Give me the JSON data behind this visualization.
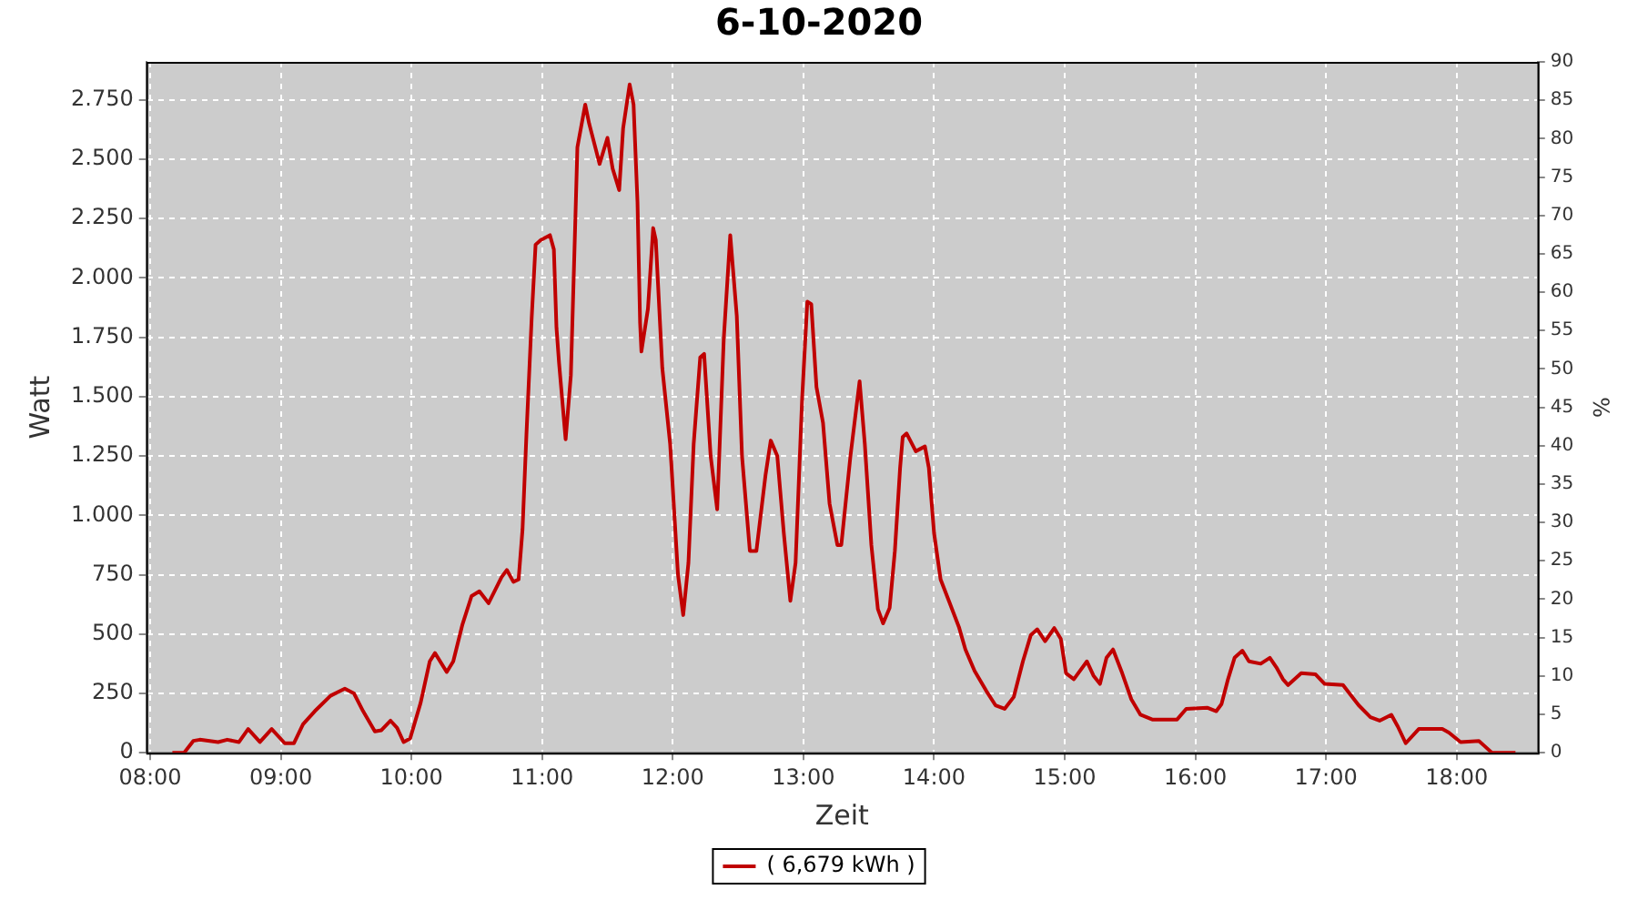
{
  "chart_data": {
    "type": "line",
    "title": "6-10-2020",
    "xlabel": "Zeit",
    "ylabel": "Watt",
    "y2label": "%",
    "x": [
      8.17,
      8.26,
      8.33,
      8.38,
      8.52,
      8.59,
      8.68,
      8.75,
      8.84,
      8.93,
      9.03,
      9.1,
      9.17,
      9.26,
      9.38,
      9.49,
      9.56,
      9.63,
      9.72,
      9.77,
      9.84,
      9.89,
      9.94,
      9.99,
      10.07,
      10.14,
      10.18,
      10.27,
      10.32,
      10.39,
      10.46,
      10.52,
      10.59,
      10.69,
      10.73,
      10.78,
      10.82,
      10.85,
      10.88,
      10.92,
      10.95,
      10.99,
      11.06,
      11.09,
      11.11,
      11.13,
      11.18,
      11.22,
      11.25,
      11.27,
      11.33,
      11.36,
      11.44,
      11.5,
      11.54,
      11.59,
      11.62,
      11.67,
      11.7,
      11.73,
      11.75,
      11.76,
      11.81,
      11.85,
      11.87,
      11.92,
      11.98,
      12.04,
      12.08,
      12.12,
      12.16,
      12.21,
      12.24,
      12.29,
      12.34,
      12.39,
      12.44,
      12.49,
      12.53,
      12.59,
      12.64,
      12.71,
      12.75,
      12.8,
      12.85,
      12.9,
      12.94,
      12.99,
      13.03,
      13.06,
      13.1,
      13.15,
      13.2,
      13.26,
      13.29,
      13.36,
      13.43,
      13.47,
      13.52,
      13.57,
      13.61,
      13.66,
      13.7,
      13.74,
      13.76,
      13.79,
      13.86,
      13.93,
      13.96,
      14.0,
      14.05,
      14.12,
      14.19,
      14.24,
      14.31,
      14.4,
      14.47,
      14.54,
      14.61,
      14.68,
      14.74,
      14.79,
      14.85,
      14.92,
      14.97,
      15.01,
      15.07,
      15.17,
      15.22,
      15.27,
      15.32,
      15.37,
      15.44,
      15.51,
      15.58,
      15.67,
      15.86,
      15.93,
      16.09,
      16.16,
      16.2,
      16.25,
      16.3,
      16.36,
      16.41,
      16.5,
      16.57,
      16.62,
      16.67,
      16.71,
      16.81,
      16.92,
      16.99,
      17.13,
      17.25,
      17.34,
      17.41,
      17.5,
      17.55,
      17.61,
      17.71,
      17.89,
      17.94,
      18.03,
      18.17,
      18.21,
      18.27,
      18.45
    ],
    "series": [
      {
        "name": "( 6,679 kWh )",
        "color": "#c00000",
        "values": [
          0,
          0,
          50,
          55,
          45,
          55,
          45,
          100,
          45,
          100,
          40,
          40,
          120,
          175,
          240,
          270,
          250,
          175,
          90,
          95,
          135,
          105,
          45,
          60,
          210,
          385,
          420,
          340,
          385,
          540,
          660,
          680,
          630,
          740,
          770,
          720,
          730,
          940,
          1340,
          1830,
          2140,
          2160,
          2180,
          2120,
          1790,
          1640,
          1320,
          1590,
          2160,
          2550,
          2730,
          2650,
          2480,
          2590,
          2460,
          2370,
          2630,
          2815,
          2730,
          2320,
          1810,
          1690,
          1870,
          2210,
          2160,
          1620,
          1300,
          750,
          580,
          800,
          1300,
          1665,
          1680,
          1250,
          1025,
          1740,
          2180,
          1840,
          1250,
          850,
          850,
          1170,
          1315,
          1250,
          925,
          640,
          800,
          1490,
          1900,
          1890,
          1540,
          1390,
          1050,
          875,
          875,
          1250,
          1565,
          1300,
          875,
          605,
          545,
          610,
          850,
          1200,
          1330,
          1345,
          1270,
          1290,
          1200,
          925,
          730,
          630,
          530,
          435,
          345,
          260,
          200,
          185,
          235,
          385,
          495,
          520,
          470,
          525,
          480,
          335,
          310,
          385,
          325,
          290,
          400,
          435,
          335,
          225,
          160,
          140,
          140,
          185,
          190,
          175,
          205,
          310,
          400,
          430,
          385,
          375,
          400,
          360,
          310,
          285,
          335,
          330,
          290,
          285,
          200,
          150,
          135,
          160,
          110,
          40,
          100,
          100,
          85,
          45,
          50,
          30,
          0,
          0
        ]
      }
    ],
    "xlim": [
      7.97,
      18.62
    ],
    "xticks": [
      {
        "value": 8,
        "label": "08:00"
      },
      {
        "value": 9,
        "label": "09:00"
      },
      {
        "value": 10,
        "label": "10:00"
      },
      {
        "value": 11,
        "label": "11:00"
      },
      {
        "value": 12,
        "label": "12:00"
      },
      {
        "value": 13,
        "label": "13:00"
      },
      {
        "value": 14,
        "label": "14:00"
      },
      {
        "value": 15,
        "label": "15:00"
      },
      {
        "value": 16,
        "label": "16:00"
      },
      {
        "value": 17,
        "label": "17:00"
      },
      {
        "value": 18,
        "label": "18:00"
      }
    ],
    "ylim": [
      0,
      2910
    ],
    "yticks": [
      0,
      250,
      500,
      750,
      {
        "value": 1000,
        "label": "1.000"
      },
      {
        "value": 1250,
        "label": "1.250"
      },
      {
        "value": 1500,
        "label": "1.500"
      },
      {
        "value": 1750,
        "label": "1.750"
      },
      {
        "value": 2000,
        "label": "2.000"
      },
      {
        "value": 2250,
        "label": "2.250"
      },
      {
        "value": 2500,
        "label": "2.500"
      },
      {
        "value": 2750,
        "label": "2.750"
      }
    ],
    "y2lim": [
      0,
      90
    ],
    "y2ticks": [
      0,
      5,
      10,
      15,
      20,
      25,
      30,
      35,
      40,
      45,
      50,
      55,
      60,
      65,
      70,
      75,
      80,
      85,
      90
    ],
    "grid": true,
    "legend": "bottom",
    "marker": "none",
    "line_style": "solid"
  }
}
